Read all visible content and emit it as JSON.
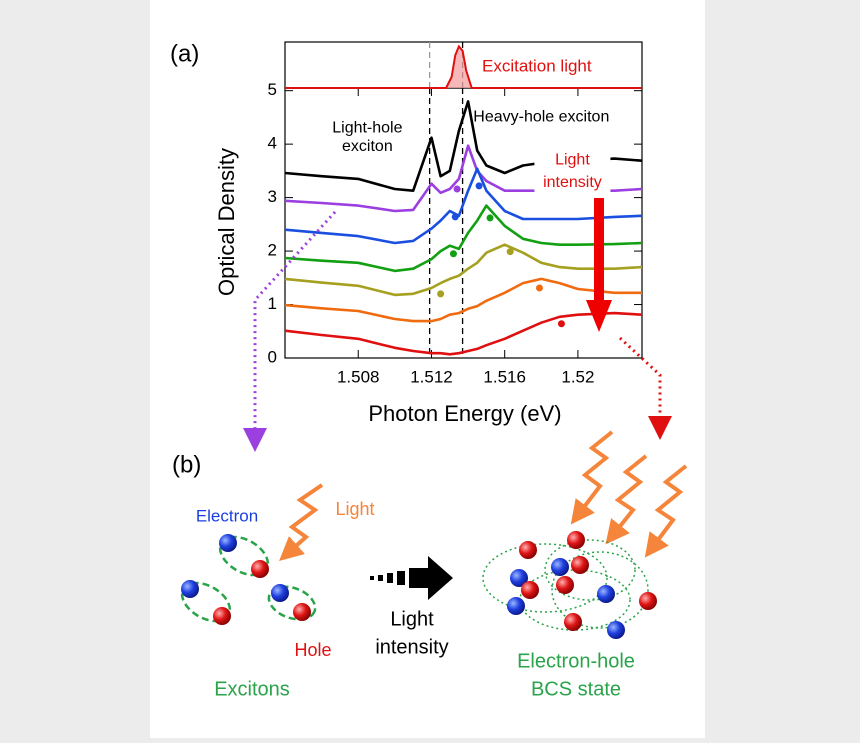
{
  "chart_data": {
    "type": "line",
    "panel_label": "(a)",
    "xlabel": "Photon Energy (eV)",
    "ylabel": "Optical Density",
    "xlim": [
      1.504,
      1.5235
    ],
    "ylim": [
      0,
      5.05
    ],
    "xticks": [
      1.508,
      1.512,
      1.516,
      1.52
    ],
    "yticks": [
      0,
      1,
      2,
      3,
      4,
      5
    ],
    "vlines": [
      1.5119,
      1.5137
    ],
    "x": [
      1.504,
      1.506,
      1.508,
      1.51,
      1.511,
      1.512,
      1.5125,
      1.513,
      1.5135,
      1.514,
      1.5145,
      1.515,
      1.516,
      1.517,
      1.518,
      1.519,
      1.52,
      1.522,
      1.5235
    ],
    "series": [
      {
        "color": "#000000",
        "values": [
          3.46,
          3.4,
          3.35,
          3.16,
          3.13,
          4.12,
          3.4,
          3.5,
          4.25,
          4.8,
          3.88,
          3.6,
          3.46,
          3.6,
          3.65,
          3.69,
          3.69,
          3.73,
          3.69
        ]
      },
      {
        "color": "#9b3fe0",
        "values": [
          2.94,
          2.9,
          2.85,
          2.75,
          2.77,
          3.26,
          3.09,
          3.16,
          3.35,
          3.97,
          3.5,
          3.31,
          3.13,
          3.13,
          3.13,
          3.16,
          3.13,
          3.13,
          3.16
        ],
        "peaks": {
          "x": [
            1.5134
          ],
          "values": [
            3.16
          ]
        }
      },
      {
        "color": "#1a4fe0",
        "values": [
          2.4,
          2.34,
          2.28,
          2.15,
          2.19,
          2.42,
          2.57,
          2.75,
          2.66,
          3.13,
          3.54,
          3.13,
          2.75,
          2.6,
          2.6,
          2.6,
          2.6,
          2.64,
          2.66
        ],
        "peaks": {
          "x": [
            1.5133,
            1.5146
          ],
          "values": [
            2.64,
            3.22
          ]
        }
      },
      {
        "color": "#12a012",
        "values": [
          1.87,
          1.82,
          1.78,
          1.63,
          1.67,
          1.85,
          2.0,
          2.1,
          2.04,
          2.34,
          2.57,
          2.85,
          2.47,
          2.23,
          2.15,
          2.12,
          2.12,
          2.13,
          2.15
        ],
        "peaks": {
          "x": [
            1.5132,
            1.5152
          ],
          "values": [
            1.95,
            2.62
          ]
        }
      },
      {
        "color": "#a6a020",
        "values": [
          1.48,
          1.41,
          1.35,
          1.18,
          1.2,
          1.31,
          1.4,
          1.48,
          1.54,
          1.67,
          1.78,
          1.97,
          2.12,
          1.97,
          1.78,
          1.7,
          1.67,
          1.67,
          1.7
        ],
        "peaks": {
          "x": [
            1.5125,
            1.5163
          ],
          "values": [
            1.2,
            1.99
          ]
        }
      },
      {
        "color": "#f06a10",
        "values": [
          0.99,
          0.93,
          0.88,
          0.73,
          0.69,
          0.69,
          0.73,
          0.81,
          0.84,
          0.92,
          0.97,
          1.07,
          1.22,
          1.4,
          1.48,
          1.4,
          1.29,
          1.22,
          1.22
        ],
        "peaks": {
          "x": [
            1.5179
          ],
          "values": [
            1.31
          ]
        }
      },
      {
        "color": "#e01010",
        "values": [
          0.51,
          0.43,
          0.36,
          0.19,
          0.13,
          0.09,
          0.09,
          0.07,
          0.09,
          0.13,
          0.17,
          0.24,
          0.36,
          0.51,
          0.66,
          0.77,
          0.81,
          0.84,
          0.81
        ],
        "peaks": {
          "x": [
            1.5191
          ],
          "values": [
            0.64
          ]
        }
      }
    ],
    "excitation": {
      "name": "Excitation light",
      "color": "#e01010",
      "x": [
        1.504,
        1.5128,
        1.5131,
        1.5133,
        1.5135,
        1.5137,
        1.5139,
        1.5142,
        1.5235
      ],
      "values": [
        0,
        0,
        0.25,
        0.75,
        0.95,
        0.85,
        0.4,
        0,
        0
      ],
      "ylim": [
        0,
        1.05
      ]
    },
    "annotations": [
      {
        "text": "Light-hole",
        "x": 1.5085,
        "y": 4.3
      },
      {
        "text": "exciton",
        "x": 1.5085,
        "y": 3.95
      },
      {
        "text": "Heavy-hole exciton",
        "x": 1.518,
        "y": 4.5
      },
      {
        "text": "Light",
        "x": 1.5197,
        "y": 3.7,
        "color": "#e01010"
      },
      {
        "text": "intensity",
        "x": 1.5197,
        "y": 3.28,
        "color": "#e01010"
      }
    ]
  },
  "diagram": {
    "panel_label": "(b)",
    "electron": "Electron",
    "light": "Light",
    "hole": "Hole",
    "excitons": "Excitons",
    "arrow_label": [
      "Light",
      "intensity"
    ],
    "bcs_label": [
      "Electron-hole",
      "BCS state"
    ]
  }
}
